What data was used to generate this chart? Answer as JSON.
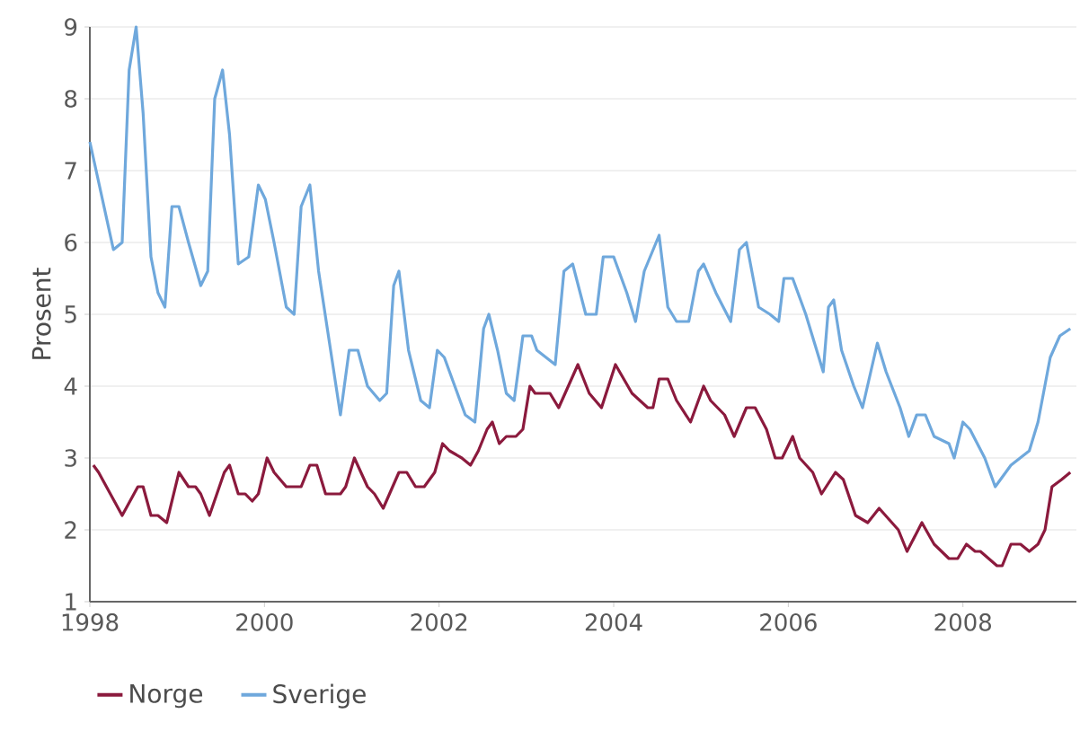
{
  "chart_data": {
    "type": "line",
    "ylabel": "Prosent",
    "xlim": [
      1998,
      2009.3
    ],
    "ylim": [
      1,
      9
    ],
    "xticks": [
      1998,
      2000,
      2002,
      2004,
      2006,
      2008
    ],
    "yticks": [
      1,
      2,
      3,
      4,
      5,
      6,
      7,
      8,
      9
    ],
    "grid": "y",
    "legend": "bottom",
    "marker": "none",
    "line_style": "solid",
    "series": [
      {
        "name": "Norge",
        "color": "#8b1a3d",
        "x": [
          1998.04,
          1998.1,
          1998.37,
          1998.55,
          1998.61,
          1998.7,
          1998.78,
          1998.88,
          1999.02,
          1999.13,
          1999.21,
          1999.27,
          1999.37,
          1999.54,
          1999.6,
          1999.7,
          1999.78,
          1999.86,
          1999.93,
          2000.03,
          2000.11,
          2000.25,
          2000.42,
          2000.52,
          2000.6,
          2000.7,
          2000.87,
          2000.93,
          2001.03,
          2001.18,
          2001.26,
          2001.36,
          2001.54,
          2001.63,
          2001.73,
          2001.83,
          2001.95,
          2002.04,
          2002.12,
          2002.26,
          2002.36,
          2002.45,
          2002.55,
          2002.61,
          2002.69,
          2002.77,
          2002.88,
          2002.96,
          2003.04,
          2003.1,
          2003.27,
          2003.37,
          2003.59,
          2003.72,
          2003.86,
          2004.02,
          2004.21,
          2004.39,
          2004.45,
          2004.52,
          2004.62,
          2004.72,
          2004.88,
          2005.03,
          2005.11,
          2005.27,
          2005.38,
          2005.52,
          2005.62,
          2005.75,
          2005.85,
          2005.93,
          2006.05,
          2006.13,
          2006.28,
          2006.38,
          2006.54,
          2006.63,
          2006.77,
          2006.91,
          2007.04,
          2007.26,
          2007.36,
          2007.53,
          2007.67,
          2007.84,
          2007.94,
          2008.04,
          2008.14,
          2008.2,
          2008.39,
          2008.45,
          2008.55,
          2008.66,
          2008.76,
          2008.86,
          2008.94,
          2009.02,
          2009.13,
          2009.23
        ],
        "values": [
          2.9,
          2.8,
          2.2,
          2.6,
          2.6,
          2.2,
          2.2,
          2.1,
          2.8,
          2.6,
          2.6,
          2.5,
          2.2,
          2.8,
          2.9,
          2.5,
          2.5,
          2.4,
          2.5,
          3.0,
          2.8,
          2.6,
          2.6,
          2.9,
          2.9,
          2.5,
          2.5,
          2.6,
          3.0,
          2.6,
          2.5,
          2.3,
          2.8,
          2.8,
          2.6,
          2.6,
          2.8,
          3.2,
          3.1,
          3.0,
          2.9,
          3.1,
          3.4,
          3.5,
          3.2,
          3.3,
          3.3,
          3.4,
          4.0,
          3.9,
          3.9,
          3.7,
          4.3,
          3.9,
          3.7,
          4.3,
          3.9,
          3.7,
          3.7,
          4.1,
          4.1,
          3.8,
          3.5,
          4.0,
          3.8,
          3.6,
          3.3,
          3.7,
          3.7,
          3.4,
          3.0,
          3.0,
          3.3,
          3.0,
          2.8,
          2.5,
          2.8,
          2.7,
          2.2,
          2.1,
          2.3,
          2.0,
          1.7,
          2.1,
          1.8,
          1.6,
          1.6,
          1.8,
          1.7,
          1.7,
          1.5,
          1.5,
          1.8,
          1.8,
          1.7,
          1.8,
          2.0,
          2.6,
          2.7,
          2.8
        ]
      },
      {
        "name": "Sverige",
        "color": "#6fa8dc",
        "x": [
          1998.0,
          1998.27,
          1998.37,
          1998.45,
          1998.53,
          1998.61,
          1998.7,
          1998.78,
          1998.86,
          1998.94,
          1999.02,
          1999.13,
          1999.27,
          1999.35,
          1999.43,
          1999.52,
          1999.6,
          1999.7,
          1999.82,
          1999.93,
          2000.01,
          2000.11,
          2000.25,
          2000.34,
          2000.42,
          2000.52,
          2000.62,
          2000.87,
          2000.97,
          2001.07,
          2001.18,
          2001.32,
          2001.4,
          2001.48,
          2001.54,
          2001.65,
          2001.79,
          2001.89,
          2001.98,
          2002.06,
          2002.18,
          2002.3,
          2002.41,
          2002.51,
          2002.57,
          2002.67,
          2002.77,
          2002.86,
          2002.96,
          2003.06,
          2003.12,
          2003.33,
          2003.43,
          2003.53,
          2003.68,
          2003.8,
          2003.88,
          2004.0,
          2004.15,
          2004.25,
          2004.35,
          2004.52,
          2004.62,
          2004.72,
          2004.86,
          2004.97,
          2005.03,
          2005.17,
          2005.34,
          2005.44,
          2005.52,
          2005.66,
          2005.79,
          2005.89,
          2005.95,
          2006.05,
          2006.2,
          2006.3,
          2006.4,
          2006.46,
          2006.52,
          2006.61,
          2006.75,
          2006.85,
          2007.02,
          2007.12,
          2007.28,
          2007.38,
          2007.47,
          2007.57,
          2007.67,
          2007.84,
          2007.9,
          2008.0,
          2008.08,
          2008.25,
          2008.37,
          2008.55,
          2008.76,
          2008.86,
          2009.0,
          2009.11,
          2009.23
        ],
        "values": [
          7.4,
          5.9,
          6.0,
          8.4,
          9.0,
          7.8,
          5.8,
          5.3,
          5.1,
          6.5,
          6.5,
          6.0,
          5.4,
          5.6,
          8.0,
          8.4,
          7.5,
          5.7,
          5.8,
          6.8,
          6.6,
          6.0,
          5.1,
          5.0,
          6.5,
          6.8,
          5.6,
          3.6,
          4.5,
          4.5,
          4.0,
          3.8,
          3.9,
          5.4,
          5.6,
          4.5,
          3.8,
          3.7,
          4.5,
          4.4,
          4.0,
          3.6,
          3.5,
          4.8,
          5.0,
          4.5,
          3.9,
          3.8,
          4.7,
          4.7,
          4.5,
          4.3,
          5.6,
          5.7,
          5.0,
          5.0,
          5.8,
          5.8,
          5.3,
          4.9,
          5.6,
          6.1,
          5.1,
          4.9,
          4.9,
          5.6,
          5.7,
          5.3,
          4.9,
          5.9,
          6.0,
          5.1,
          5.0,
          4.9,
          5.5,
          5.5,
          5.0,
          4.6,
          4.2,
          5.1,
          5.2,
          4.5,
          4.0,
          3.7,
          4.6,
          4.2,
          3.7,
          3.3,
          3.6,
          3.6,
          3.3,
          3.2,
          3.0,
          3.5,
          3.4,
          3.0,
          2.6,
          2.9,
          3.1,
          3.5,
          4.4,
          4.7,
          4.8
        ]
      }
    ]
  }
}
